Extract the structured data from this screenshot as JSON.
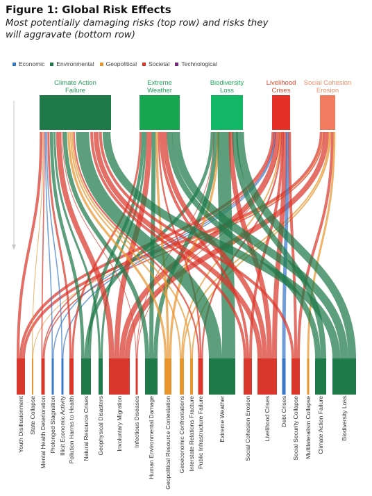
{
  "figure": {
    "title": "Figure 1: Global Risk Effects",
    "subtitle": "Most potentially damaging risks (top row) and risks they will aggravate (bottom row)"
  },
  "legend": [
    {
      "label": "Economic",
      "color": "#3a78c9"
    },
    {
      "label": "Environmental",
      "color": "#1f7a4a"
    },
    {
      "label": "Geopolitical",
      "color": "#e8952e"
    },
    {
      "label": "Societal",
      "color": "#d9372b"
    },
    {
      "label": "Technological",
      "color": "#7a2a7e"
    }
  ],
  "chart_data": {
    "type": "sankey",
    "sources": [
      {
        "name": "Climate Action Failure",
        "lines": [
          "Climate Action",
          "Failure"
        ],
        "category": "Environmental",
        "color": "#1f7a4a",
        "label_color": "#2a9a5e",
        "weight": 30
      },
      {
        "name": "Extreme Weather",
        "lines": [
          "Extreme",
          "Weather"
        ],
        "category": "Environmental",
        "color": "#16a64f",
        "label_color": "#20a85a",
        "weight": 17
      },
      {
        "name": "Biodiversity Loss",
        "lines": [
          "Biodiversity",
          "Loss"
        ],
        "category": "Environmental",
        "color": "#12b866",
        "label_color": "#20a85a",
        "weight": 14
      },
      {
        "name": "Livelihood Crises",
        "lines": [
          "Livelihood",
          "Crises"
        ],
        "category": "Societal",
        "color": "#e53027",
        "label_color": "#e0452e",
        "weight": 8
      },
      {
        "name": "Social Cohesion Erosion",
        "lines": [
          "Social Cohesion",
          "Erosion"
        ],
        "category": "Societal",
        "color": "#f27a5e",
        "label_color": "#f08a66",
        "weight": 7
      }
    ],
    "targets": [
      {
        "name": "Youth Disillusionment",
        "category": "Societal",
        "weight": 2.5
      },
      {
        "name": "State Collapse",
        "category": "Geopolitical",
        "weight": 1
      },
      {
        "name": "Mental Health Deterioration",
        "category": "Societal",
        "weight": 1.5
      },
      {
        "name": "Prolonged Stagnation",
        "category": "Economic",
        "weight": 1
      },
      {
        "name": "Illicit Economic Activity",
        "category": "Economic",
        "weight": 1
      },
      {
        "name": "Pollution Harms to Health",
        "category": "Societal",
        "weight": 1.5
      },
      {
        "name": "Natural Resource Crises",
        "category": "Environmental",
        "weight": 3
      },
      {
        "name": "Geophysical Disasters",
        "category": "Environmental",
        "weight": 1.5
      },
      {
        "name": "Involuntary Migration",
        "category": "Societal",
        "weight": 5.5
      },
      {
        "name": "Infectious Diseases",
        "category": "Societal",
        "weight": 1
      },
      {
        "name": "Human Environmental Damage",
        "category": "Environmental",
        "weight": 4
      },
      {
        "name": "Geopolitical Resource Contestation",
        "category": "Geopolitical",
        "weight": 2.2
      },
      {
        "name": "Geoeconomic Confrontations",
        "category": "Geopolitical",
        "weight": 1.3
      },
      {
        "name": "Interstate Relations Fracture",
        "category": "Geopolitical",
        "weight": 1
      },
      {
        "name": "Public Infrastructure Failure",
        "category": "Societal",
        "weight": 2
      },
      {
        "name": "Extreme Weather",
        "category": "Environmental",
        "weight": 7.5
      },
      {
        "name": "Social Cohesion Erosion",
        "category": "Societal",
        "weight": 2.5
      },
      {
        "name": "Livelihood Crises",
        "category": "Societal",
        "weight": 6
      },
      {
        "name": "Debt Crises",
        "category": "Economic",
        "weight": 1
      },
      {
        "name": "Social Security Collapse",
        "category": "Societal",
        "weight": 2.5
      },
      {
        "name": "Multilateralism Collapse",
        "category": "Geopolitical",
        "weight": 0.8
      },
      {
        "name": "Climate Action Failure",
        "category": "Environmental",
        "weight": 3
      },
      {
        "name": "Biodiversity Loss",
        "category": "Environmental",
        "weight": 7
      }
    ]
  }
}
